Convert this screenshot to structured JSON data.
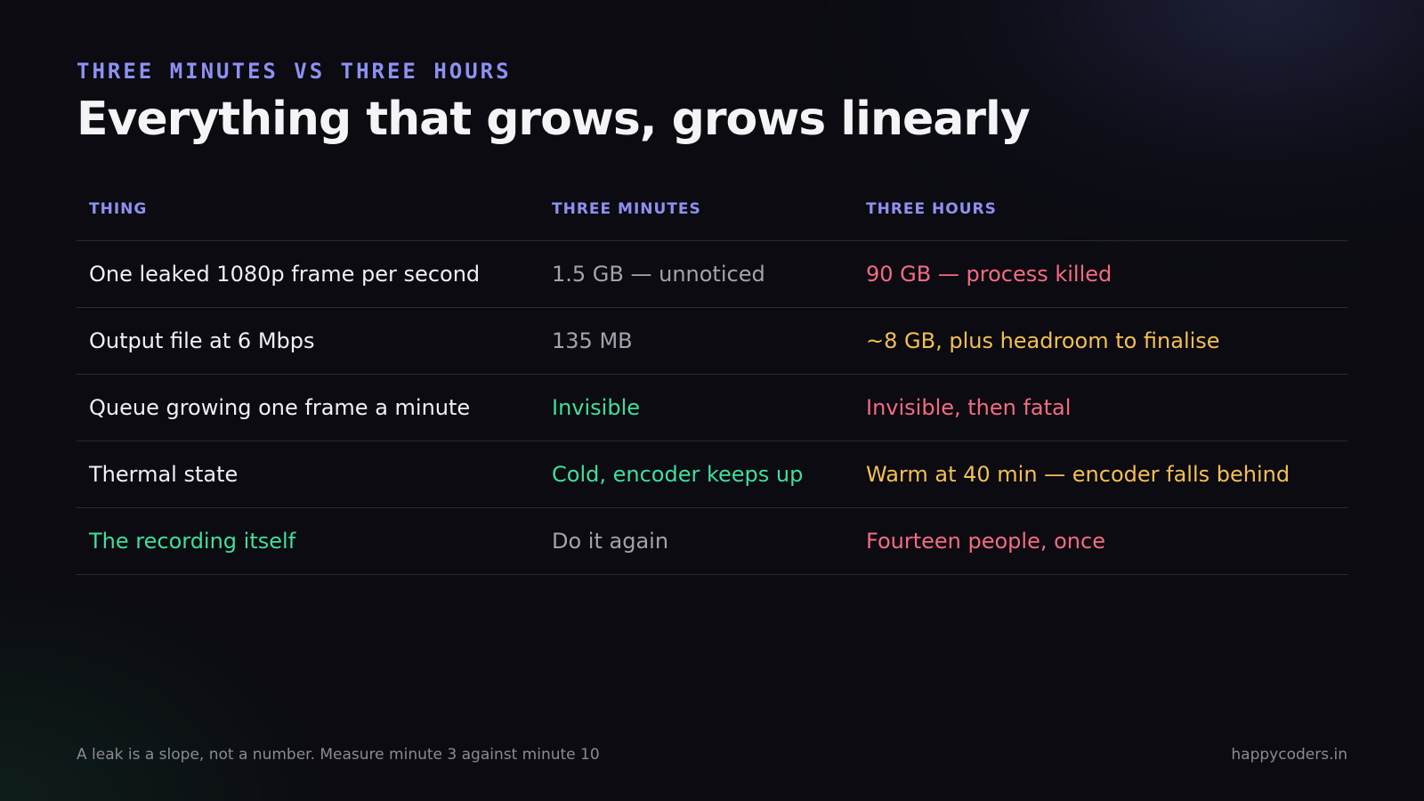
{
  "eyebrow": "THREE MINUTES VS THREE HOURS",
  "title": "Everything that grows, grows linearly",
  "table": {
    "headers": [
      "THING",
      "THREE MINUTES",
      "THREE HOURS"
    ],
    "rows": [
      [
        {
          "text": "One leaked 1080p frame per second",
          "tone": "white"
        },
        {
          "text": "1.5 GB — unnoticed",
          "tone": "gray"
        },
        {
          "text": "90 GB — process killed",
          "tone": "red"
        }
      ],
      [
        {
          "text": "Output file at 6 Mbps",
          "tone": "white"
        },
        {
          "text": "135 MB",
          "tone": "gray"
        },
        {
          "text": "~8 GB, plus headroom to finalise",
          "tone": "amber"
        }
      ],
      [
        {
          "text": "Queue growing one frame a minute",
          "tone": "white"
        },
        {
          "text": "Invisible",
          "tone": "green"
        },
        {
          "text": "Invisible, then fatal",
          "tone": "red"
        }
      ],
      [
        {
          "text": "Thermal state",
          "tone": "white"
        },
        {
          "text": "Cold, encoder keeps up",
          "tone": "green"
        },
        {
          "text": "Warm at 40 min — encoder falls behind",
          "tone": "amber"
        }
      ],
      [
        {
          "text": "The recording itself",
          "tone": "green"
        },
        {
          "text": "Do it again",
          "tone": "gray"
        },
        {
          "text": "Fourteen people, once",
          "tone": "red"
        }
      ]
    ]
  },
  "footer": {
    "note": "A leak is a slope, not a number. Measure minute 3 against minute 10",
    "brand": "happycoders.in"
  },
  "colors": {
    "accent": "#8d91f2",
    "white": "#f1f1f4",
    "gray": "#a3a3ad",
    "red": "#f46b83",
    "amber": "#f5bf55",
    "green": "#3fdf9c",
    "background": "#0b0b11"
  }
}
